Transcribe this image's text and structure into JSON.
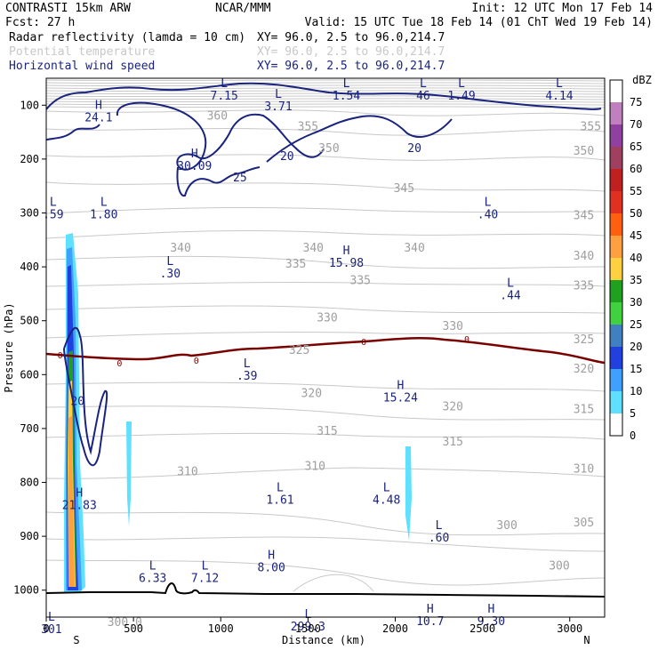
{
  "header": {
    "model": "CONTRASTI 15km ARW",
    "forecast": "Fcst:    27 h",
    "org": "NCAR/MMM",
    "init": "Init: 12 UTC Mon 17 Feb 14",
    "valid": "Valid: 15 UTC Tue 18 Feb 14 (01 ChT Wed 19 Feb 14)",
    "fields": [
      {
        "name": "Radar reflectivity (lamda = 10 cm)",
        "xy": "XY=  96.0,  2.5 to  96.0,214.7",
        "color": "#000000"
      },
      {
        "name": "Potential temperature",
        "xy": "XY=  96.0,  2.5 to  96.0,214.7",
        "color": "#c8c8c8"
      },
      {
        "name": "Horizontal wind speed",
        "xy": "XY=  96.0,  2.5 to  96.0,214.7",
        "color": "#1a237e"
      }
    ]
  },
  "chart_data": {
    "type": "contour-cross-section",
    "title": "Radar reflectivity / Potential temperature / Horizontal wind speed cross-section",
    "xlabel": "Distance (km)",
    "ylabel": "Pressure (hPa)",
    "xlim": [
      0,
      3200
    ],
    "ylim": [
      1050,
      50
    ],
    "xticks": [
      0,
      500,
      1000,
      1500,
      2000,
      2500,
      3000
    ],
    "yticks": [
      100,
      200,
      300,
      400,
      500,
      600,
      700,
      800,
      900,
      1000
    ],
    "x_end_labels": {
      "left": "S",
      "right": "N"
    },
    "colorbar": {
      "unit": "dBZ",
      "levels": [
        75,
        70,
        65,
        60,
        55,
        50,
        45,
        40,
        35,
        30,
        25,
        20,
        15,
        10,
        5,
        0
      ],
      "colors": [
        "#ffffff",
        "#c080c0",
        "#9040a0",
        "#a04060",
        "#c02020",
        "#e03020",
        "#ff6010",
        "#ffa040",
        "#ffd040",
        "#20a020",
        "#40d040",
        "#4080c0",
        "#2040e0",
        "#40a0ff",
        "#60e0ff",
        "#ffffff"
      ]
    },
    "theta_labels": [
      {
        "v": "360",
        "x": 980,
        "p": 120
      },
      {
        "v": "355",
        "x": 1500,
        "p": 140
      },
      {
        "v": "355",
        "x": 3120,
        "p": 140
      },
      {
        "v": "350",
        "x": 1620,
        "p": 180
      },
      {
        "v": "350",
        "x": 3080,
        "p": 185
      },
      {
        "v": "345",
        "x": 2050,
        "p": 255
      },
      {
        "v": "345",
        "x": 3080,
        "p": 305
      },
      {
        "v": "340",
        "x": 770,
        "p": 365
      },
      {
        "v": "340",
        "x": 1530,
        "p": 365
      },
      {
        "v": "340",
        "x": 2110,
        "p": 365
      },
      {
        "v": "340",
        "x": 3080,
        "p": 380
      },
      {
        "v": "335",
        "x": 1430,
        "p": 395
      },
      {
        "v": "335",
        "x": 1800,
        "p": 425
      },
      {
        "v": "335",
        "x": 3080,
        "p": 435
      },
      {
        "v": "330",
        "x": 1610,
        "p": 495
      },
      {
        "v": "330",
        "x": 2330,
        "p": 510
      },
      {
        "v": "325",
        "x": 1450,
        "p": 555
      },
      {
        "v": "325",
        "x": 3080,
        "p": 535
      },
      {
        "v": "320",
        "x": 1520,
        "p": 635
      },
      {
        "v": "320",
        "x": 2330,
        "p": 660
      },
      {
        "v": "320",
        "x": 3080,
        "p": 590
      },
      {
        "v": "315",
        "x": 1610,
        "p": 705
      },
      {
        "v": "315",
        "x": 2330,
        "p": 725
      },
      {
        "v": "315",
        "x": 3080,
        "p": 665
      },
      {
        "v": "310",
        "x": 810,
        "p": 780
      },
      {
        "v": "310",
        "x": 1540,
        "p": 770
      },
      {
        "v": "310",
        "x": 3080,
        "p": 775
      },
      {
        "v": "305",
        "x": 3080,
        "p": 875
      },
      {
        "v": "300",
        "x": 2640,
        "p": 880
      },
      {
        "v": "300",
        "x": 2940,
        "p": 955
      },
      {
        "v": "300.0",
        "x": 450,
        "p": 1060
      }
    ],
    "speed_labels": [
      {
        "v": "20",
        "x": 2110,
        "p": 180
      },
      {
        "v": "20",
        "x": 1380,
        "p": 195
      },
      {
        "v": "25",
        "x": 1110,
        "p": 235
      },
      {
        "v": "20",
        "x": 180,
        "p": 650
      }
    ],
    "freezing_labels": [
      {
        "v": "0",
        "x": 80,
        "p": 565
      },
      {
        "v": "0",
        "x": 420,
        "p": 580
      },
      {
        "v": "0",
        "x": 860,
        "p": 575
      },
      {
        "v": "0",
        "x": 1820,
        "p": 540
      },
      {
        "v": "0",
        "x": 2410,
        "p": 535
      }
    ],
    "extrema": [
      {
        "t": "H",
        "v": "24.1",
        "x": 300,
        "p": 110
      },
      {
        "t": "L",
        "v": "7.15",
        "x": 1020,
        "p": 70
      },
      {
        "t": "L",
        "v": "3.71",
        "x": 1330,
        "p": 90
      },
      {
        "t": "L",
        "v": "1.54",
        "x": 1720,
        "p": 70
      },
      {
        "t": "L",
        "v": "46",
        "x": 2160,
        "p": 70
      },
      {
        "t": "L",
        "v": "1.49",
        "x": 2380,
        "p": 70
      },
      {
        "t": "L",
        "v": "4.14",
        "x": 2940,
        "p": 70
      },
      {
        "t": "H",
        "v": "30.09",
        "x": 850,
        "p": 200
      },
      {
        "t": "L",
        "v": ".59",
        "x": 40,
        "p": 290
      },
      {
        "t": "L",
        "v": "1.80",
        "x": 330,
        "p": 290
      },
      {
        "t": "L",
        "v": ".40",
        "x": 2530,
        "p": 290
      },
      {
        "t": "H",
        "v": "15.98",
        "x": 1720,
        "p": 380
      },
      {
        "t": "L",
        "v": ".30",
        "x": 710,
        "p": 400
      },
      {
        "t": "L",
        "v": ".44",
        "x": 2660,
        "p": 440
      },
      {
        "t": "L",
        "v": ".39",
        "x": 1150,
        "p": 590
      },
      {
        "t": "H",
        "v": "15.24",
        "x": 2030,
        "p": 630
      },
      {
        "t": "L",
        "v": "1.61",
        "x": 1340,
        "p": 820
      },
      {
        "t": "L",
        "v": "4.48",
        "x": 1950,
        "p": 820
      },
      {
        "t": "H",
        "v": "21.83",
        "x": 190,
        "p": 830
      },
      {
        "t": "L",
        "v": ".60",
        "x": 2250,
        "p": 890
      },
      {
        "t": "L",
        "v": "6.33",
        "x": 610,
        "p": 965
      },
      {
        "t": "L",
        "v": "7.12",
        "x": 910,
        "p": 965
      },
      {
        "t": "H",
        "v": "8.00",
        "x": 1290,
        "p": 945
      },
      {
        "t": "L",
        "v": "299.3",
        "x": 1500,
        "p": 1055
      },
      {
        "t": "H",
        "v": "10.7",
        "x": 2200,
        "p": 1045
      },
      {
        "t": "H",
        "v": "9.30",
        "x": 2550,
        "p": 1045
      },
      {
        "t": "L",
        "v": "301",
        "x": 30,
        "p": 1060
      }
    ]
  }
}
